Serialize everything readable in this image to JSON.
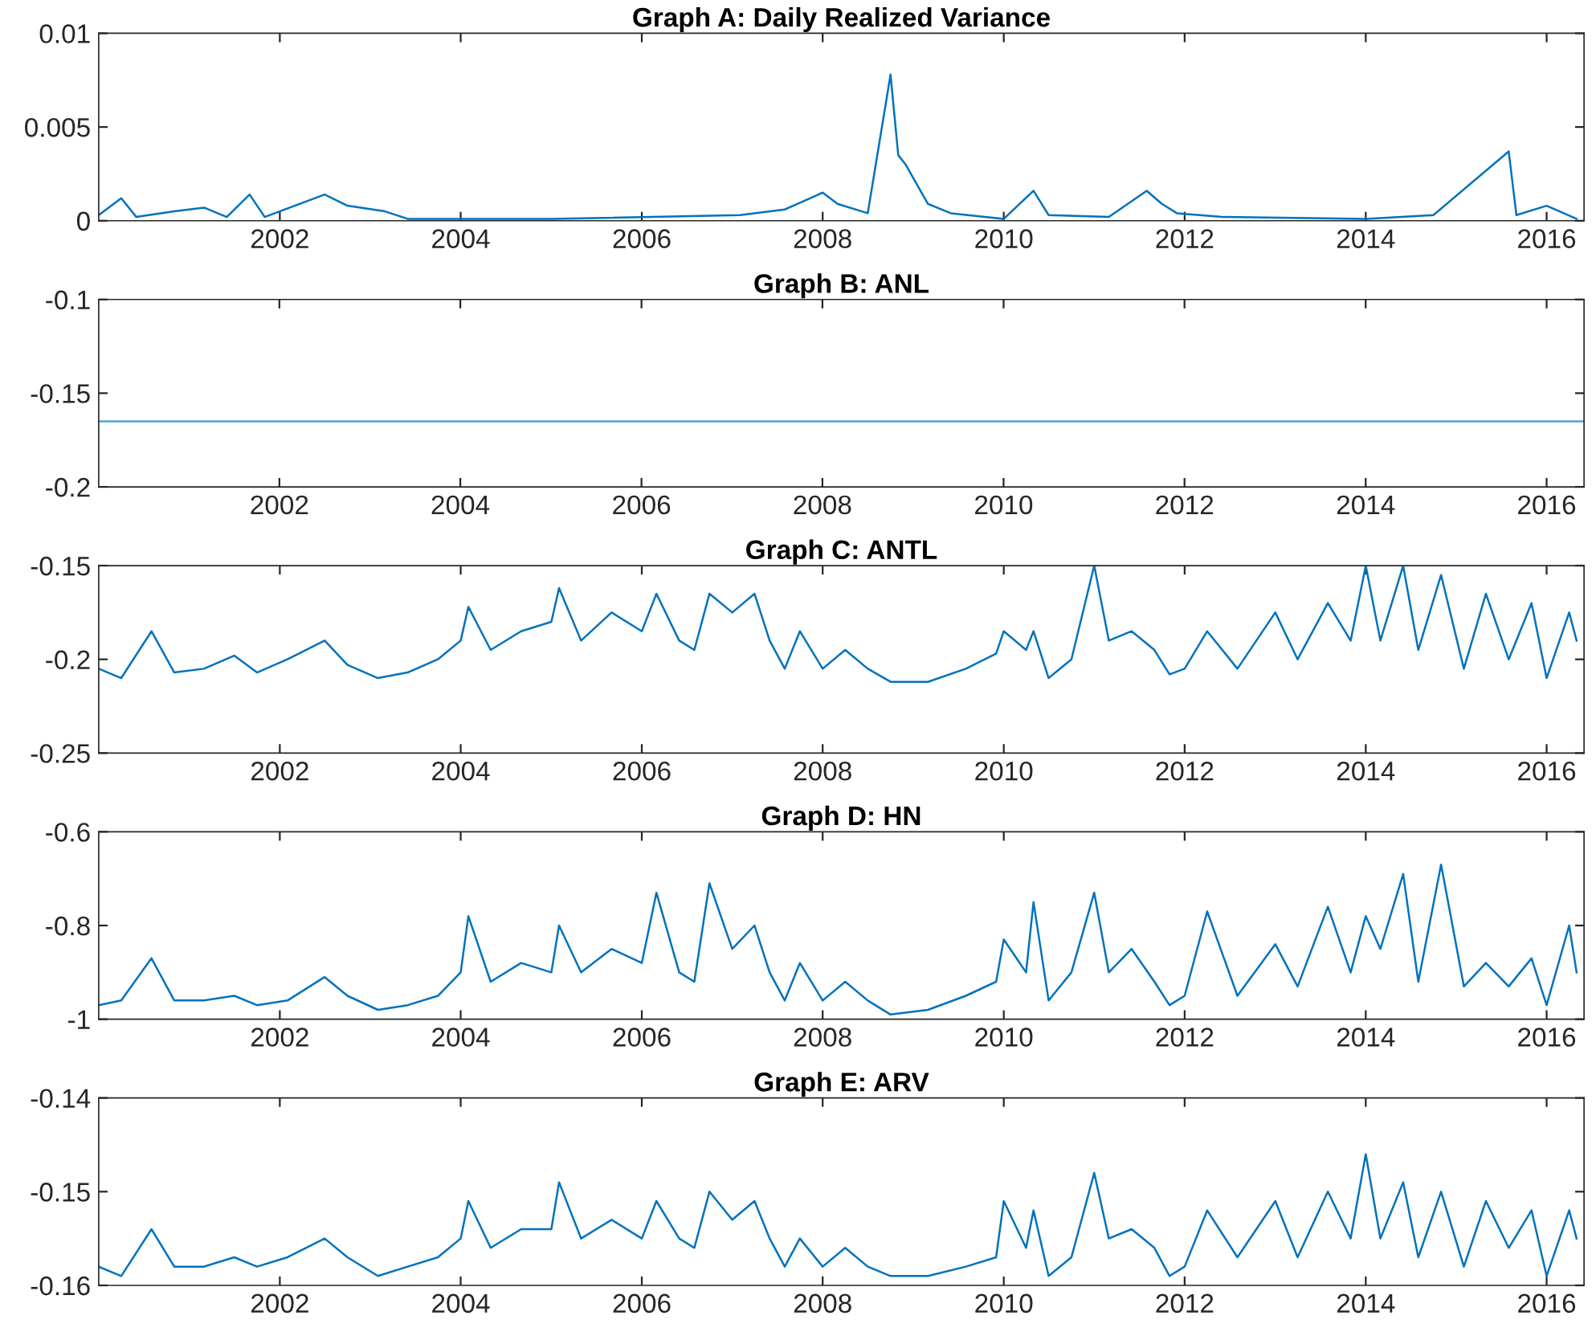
{
  "chart_data": [
    {
      "type": "line",
      "title": "Graph A: Daily Realized Variance",
      "xlim": [
        "2000-01-01",
        "2016-05-31"
      ],
      "ylim": [
        0,
        0.01
      ],
      "yticks": [
        0,
        0.005,
        0.01
      ],
      "grid": false,
      "xticks": [
        {
          "value": "2002-01-01",
          "label": "2002"
        },
        {
          "value": "2004-01-01",
          "label": "2004"
        },
        {
          "value": "2006-01-01",
          "label": "2006"
        },
        {
          "value": "2008-01-01",
          "label": "2008"
        },
        {
          "value": "2010-01-01",
          "label": "2010"
        },
        {
          "value": "2012-01-01",
          "label": "2012"
        },
        {
          "value": "2014-01-01",
          "label": "2014"
        },
        {
          "value": "2016-01-01",
          "label": "2016"
        }
      ],
      "x": [
        "2000-01",
        "2000-04",
        "2000-06",
        "2000-11",
        "2001-03",
        "2001-06",
        "2001-09",
        "2001-11",
        "2002-07",
        "2002-10",
        "2003-03",
        "2003-06",
        "2005-01",
        "2007-02",
        "2007-08",
        "2008-01",
        "2008-03",
        "2008-07",
        "2008-10",
        "2008-11",
        "2008-12",
        "2009-03",
        "2009-06",
        "2010-01",
        "2010-05",
        "2010-07",
        "2011-03",
        "2011-08",
        "2011-10",
        "2011-12",
        "2012-06",
        "2014-01",
        "2014-10",
        "2015-08",
        "2015-09",
        "2016-01",
        "2016-05"
      ],
      "series": [
        {
          "color": "#0072bd",
          "values": [
            0.0003,
            0.0012,
            0.0002,
            0.0005,
            0.0007,
            0.0002,
            0.0014,
            0.0002,
            0.0014,
            0.0008,
            0.0005,
            0.0001,
            0.0001,
            0.0003,
            0.0006,
            0.0015,
            0.0009,
            0.0004,
            0.0078,
            0.0035,
            0.003,
            0.0009,
            0.0004,
            0.0001,
            0.0016,
            0.0003,
            0.0002,
            0.0016,
            0.0009,
            0.0004,
            0.0002,
            0.0001,
            0.0003,
            0.0037,
            0.0003,
            0.0008,
            0.0001
          ]
        }
      ]
    },
    {
      "type": "line",
      "title": "Graph B: ANL",
      "xlim": [
        "2000-01-03",
        "2016-05-31"
      ],
      "ylim": [
        -0.2,
        -0.1
      ],
      "yticks": [
        -0.2,
        -0.15,
        -0.1
      ],
      "grid": false,
      "xticks": [
        {
          "value": "2002-01-01",
          "label": "2002"
        },
        {
          "value": "2004-01-01",
          "label": "2004"
        },
        {
          "value": "2006-01-01",
          "label": "2006"
        },
        {
          "value": "2008-01-01",
          "label": "2008"
        },
        {
          "value": "2010-01-01",
          "label": "2010"
        },
        {
          "value": "2012-01-01",
          "label": "2012"
        },
        {
          "value": "2014-01-01",
          "label": "2014"
        },
        {
          "value": "2016-01-01",
          "label": "2016"
        }
      ],
      "x": [
        "2000-01-03",
        "2016-05-31"
      ],
      "series": [
        {
          "color": "#4fa3d6",
          "values": [
            -0.165,
            -0.165
          ]
        }
      ]
    },
    {
      "type": "line",
      "title": "Graph C: ANTL",
      "xlim": [
        "2000-01-01",
        "2016-05-31"
      ],
      "ylim": [
        -0.25,
        -0.15
      ],
      "yticks": [
        -0.25,
        -0.2,
        -0.15
      ],
      "grid": false,
      "xticks": [
        {
          "value": "2002-01-01",
          "label": "2002"
        },
        {
          "value": "2004-01-01",
          "label": "2004"
        },
        {
          "value": "2006-01-01",
          "label": "2006"
        },
        {
          "value": "2008-01-01",
          "label": "2008"
        },
        {
          "value": "2010-01-01",
          "label": "2010"
        },
        {
          "value": "2012-01-01",
          "label": "2012"
        },
        {
          "value": "2014-01-01",
          "label": "2014"
        },
        {
          "value": "2016-01-01",
          "label": "2016"
        }
      ],
      "x": [
        "2000-01",
        "2000-04",
        "2000-08",
        "2000-11",
        "2001-03",
        "2001-07",
        "2001-10",
        "2002-02",
        "2002-07",
        "2002-10",
        "2003-02",
        "2003-06",
        "2003-10",
        "2004-01",
        "2004-02",
        "2004-05",
        "2004-09",
        "2005-01",
        "2005-02",
        "2005-05",
        "2005-09",
        "2006-01",
        "2006-03",
        "2006-06",
        "2006-08",
        "2006-10",
        "2007-01",
        "2007-04",
        "2007-06",
        "2007-08",
        "2007-10",
        "2008-01",
        "2008-04",
        "2008-07",
        "2008-10",
        "2009-03",
        "2009-08",
        "2009-12",
        "2010-01",
        "2010-04",
        "2010-05",
        "2010-07",
        "2010-10",
        "2011-01",
        "2011-03",
        "2011-06",
        "2011-09",
        "2011-11",
        "2012-01",
        "2012-04",
        "2012-08",
        "2013-01",
        "2013-04",
        "2013-08",
        "2013-11",
        "2014-01",
        "2014-03",
        "2014-06",
        "2014-08",
        "2014-11",
        "2015-02",
        "2015-05",
        "2015-08",
        "2015-11",
        "2016-01",
        "2016-04",
        "2016-05"
      ],
      "series": [
        {
          "color": "#0072bd",
          "values": [
            -0.205,
            -0.21,
            -0.185,
            -0.207,
            -0.205,
            -0.198,
            -0.207,
            -0.2,
            -0.19,
            -0.203,
            -0.21,
            -0.207,
            -0.2,
            -0.19,
            -0.172,
            -0.195,
            -0.185,
            -0.18,
            -0.162,
            -0.19,
            -0.175,
            -0.185,
            -0.165,
            -0.19,
            -0.195,
            -0.165,
            -0.175,
            -0.165,
            -0.19,
            -0.205,
            -0.185,
            -0.205,
            -0.195,
            -0.205,
            -0.212,
            -0.212,
            -0.205,
            -0.197,
            -0.185,
            -0.195,
            -0.185,
            -0.21,
            -0.2,
            -0.15,
            -0.19,
            -0.185,
            -0.195,
            -0.208,
            -0.205,
            -0.185,
            -0.205,
            -0.175,
            -0.2,
            -0.17,
            -0.19,
            -0.15,
            -0.19,
            -0.15,
            -0.195,
            -0.155,
            -0.205,
            -0.165,
            -0.2,
            -0.17,
            -0.21,
            -0.175,
            -0.19
          ]
        }
      ]
    },
    {
      "type": "line",
      "title": "Graph D: HN",
      "xlim": [
        "2000-01-01",
        "2016-05-31"
      ],
      "ylim": [
        -1,
        -0.6
      ],
      "yticks": [
        -1,
        -0.8,
        -0.6
      ],
      "grid": false,
      "xticks": [
        {
          "value": "2002-01-01",
          "label": "2002"
        },
        {
          "value": "2004-01-01",
          "label": "2004"
        },
        {
          "value": "2006-01-01",
          "label": "2006"
        },
        {
          "value": "2008-01-01",
          "label": "2008"
        },
        {
          "value": "2010-01-01",
          "label": "2010"
        },
        {
          "value": "2012-01-01",
          "label": "2012"
        },
        {
          "value": "2014-01-01",
          "label": "2014"
        },
        {
          "value": "2016-01-01",
          "label": "2016"
        }
      ],
      "x": [
        "2000-01",
        "2000-04",
        "2000-08",
        "2000-11",
        "2001-03",
        "2001-07",
        "2001-10",
        "2002-02",
        "2002-07",
        "2002-10",
        "2003-02",
        "2003-06",
        "2003-10",
        "2004-01",
        "2004-02",
        "2004-05",
        "2004-09",
        "2005-01",
        "2005-02",
        "2005-05",
        "2005-09",
        "2006-01",
        "2006-03",
        "2006-06",
        "2006-08",
        "2006-10",
        "2007-01",
        "2007-04",
        "2007-06",
        "2007-08",
        "2007-10",
        "2008-01",
        "2008-04",
        "2008-07",
        "2008-10",
        "2009-03",
        "2009-08",
        "2009-12",
        "2010-01",
        "2010-04",
        "2010-05",
        "2010-07",
        "2010-10",
        "2011-01",
        "2011-03",
        "2011-06",
        "2011-09",
        "2011-11",
        "2012-01",
        "2012-04",
        "2012-08",
        "2013-01",
        "2013-04",
        "2013-08",
        "2013-11",
        "2014-01",
        "2014-03",
        "2014-06",
        "2014-08",
        "2014-11",
        "2015-02",
        "2015-05",
        "2015-08",
        "2015-11",
        "2016-01",
        "2016-04",
        "2016-05"
      ],
      "series": [
        {
          "color": "#0072bd",
          "values": [
            -0.97,
            -0.96,
            -0.87,
            -0.96,
            -0.96,
            -0.95,
            -0.97,
            -0.96,
            -0.91,
            -0.95,
            -0.98,
            -0.97,
            -0.95,
            -0.9,
            -0.78,
            -0.92,
            -0.88,
            -0.9,
            -0.8,
            -0.9,
            -0.85,
            -0.88,
            -0.73,
            -0.9,
            -0.92,
            -0.71,
            -0.85,
            -0.8,
            -0.9,
            -0.96,
            -0.88,
            -0.96,
            -0.92,
            -0.96,
            -0.99,
            -0.98,
            -0.95,
            -0.92,
            -0.83,
            -0.9,
            -0.75,
            -0.96,
            -0.9,
            -0.73,
            -0.9,
            -0.85,
            -0.92,
            -0.97,
            -0.95,
            -0.77,
            -0.95,
            -0.84,
            -0.93,
            -0.76,
            -0.9,
            -0.78,
            -0.85,
            -0.69,
            -0.92,
            -0.67,
            -0.93,
            -0.88,
            -0.93,
            -0.87,
            -0.97,
            -0.8,
            -0.9
          ]
        }
      ]
    },
    {
      "type": "line",
      "title": "Graph E: ARV",
      "xlim": [
        "2000-01-01",
        "2016-05-31"
      ],
      "ylim": [
        -0.16,
        -0.14
      ],
      "yticks": [
        -0.16,
        -0.15,
        -0.14
      ],
      "grid": false,
      "xticks": [
        {
          "value": "2002-01-01",
          "label": "2002"
        },
        {
          "value": "2004-01-01",
          "label": "2004"
        },
        {
          "value": "2006-01-01",
          "label": "2006"
        },
        {
          "value": "2008-01-01",
          "label": "2008"
        },
        {
          "value": "2010-01-01",
          "label": "2010"
        },
        {
          "value": "2012-01-01",
          "label": "2012"
        },
        {
          "value": "2014-01-01",
          "label": "2014"
        },
        {
          "value": "2016-01-01",
          "label": "2016"
        }
      ],
      "x": [
        "2000-01",
        "2000-04",
        "2000-08",
        "2000-11",
        "2001-03",
        "2001-07",
        "2001-10",
        "2002-02",
        "2002-07",
        "2002-10",
        "2003-02",
        "2003-06",
        "2003-10",
        "2004-01",
        "2004-02",
        "2004-05",
        "2004-09",
        "2005-01",
        "2005-02",
        "2005-05",
        "2005-09",
        "2006-01",
        "2006-03",
        "2006-06",
        "2006-08",
        "2006-10",
        "2007-01",
        "2007-04",
        "2007-06",
        "2007-08",
        "2007-10",
        "2008-01",
        "2008-04",
        "2008-07",
        "2008-10",
        "2009-03",
        "2009-08",
        "2009-12",
        "2010-01",
        "2010-04",
        "2010-05",
        "2010-07",
        "2010-10",
        "2011-01",
        "2011-03",
        "2011-06",
        "2011-09",
        "2011-11",
        "2012-01",
        "2012-04",
        "2012-08",
        "2013-01",
        "2013-04",
        "2013-08",
        "2013-11",
        "2014-01",
        "2014-03",
        "2014-06",
        "2014-08",
        "2014-11",
        "2015-02",
        "2015-05",
        "2015-08",
        "2015-11",
        "2016-01",
        "2016-04",
        "2016-05"
      ],
      "series": [
        {
          "color": "#0072bd",
          "values": [
            -0.158,
            -0.159,
            -0.154,
            -0.158,
            -0.158,
            -0.157,
            -0.158,
            -0.157,
            -0.155,
            -0.157,
            -0.159,
            -0.158,
            -0.157,
            -0.155,
            -0.151,
            -0.156,
            -0.154,
            -0.154,
            -0.149,
            -0.155,
            -0.153,
            -0.155,
            -0.151,
            -0.155,
            -0.156,
            -0.15,
            -0.153,
            -0.151,
            -0.155,
            -0.158,
            -0.155,
            -0.158,
            -0.156,
            -0.158,
            -0.159,
            -0.159,
            -0.158,
            -0.157,
            -0.151,
            -0.156,
            -0.152,
            -0.159,
            -0.157,
            -0.148,
            -0.155,
            -0.154,
            -0.156,
            -0.159,
            -0.158,
            -0.152,
            -0.157,
            -0.151,
            -0.157,
            -0.15,
            -0.155,
            -0.146,
            -0.155,
            -0.149,
            -0.157,
            -0.15,
            -0.158,
            -0.151,
            -0.156,
            -0.152,
            -0.159,
            -0.152,
            -0.155
          ]
        }
      ]
    }
  ]
}
